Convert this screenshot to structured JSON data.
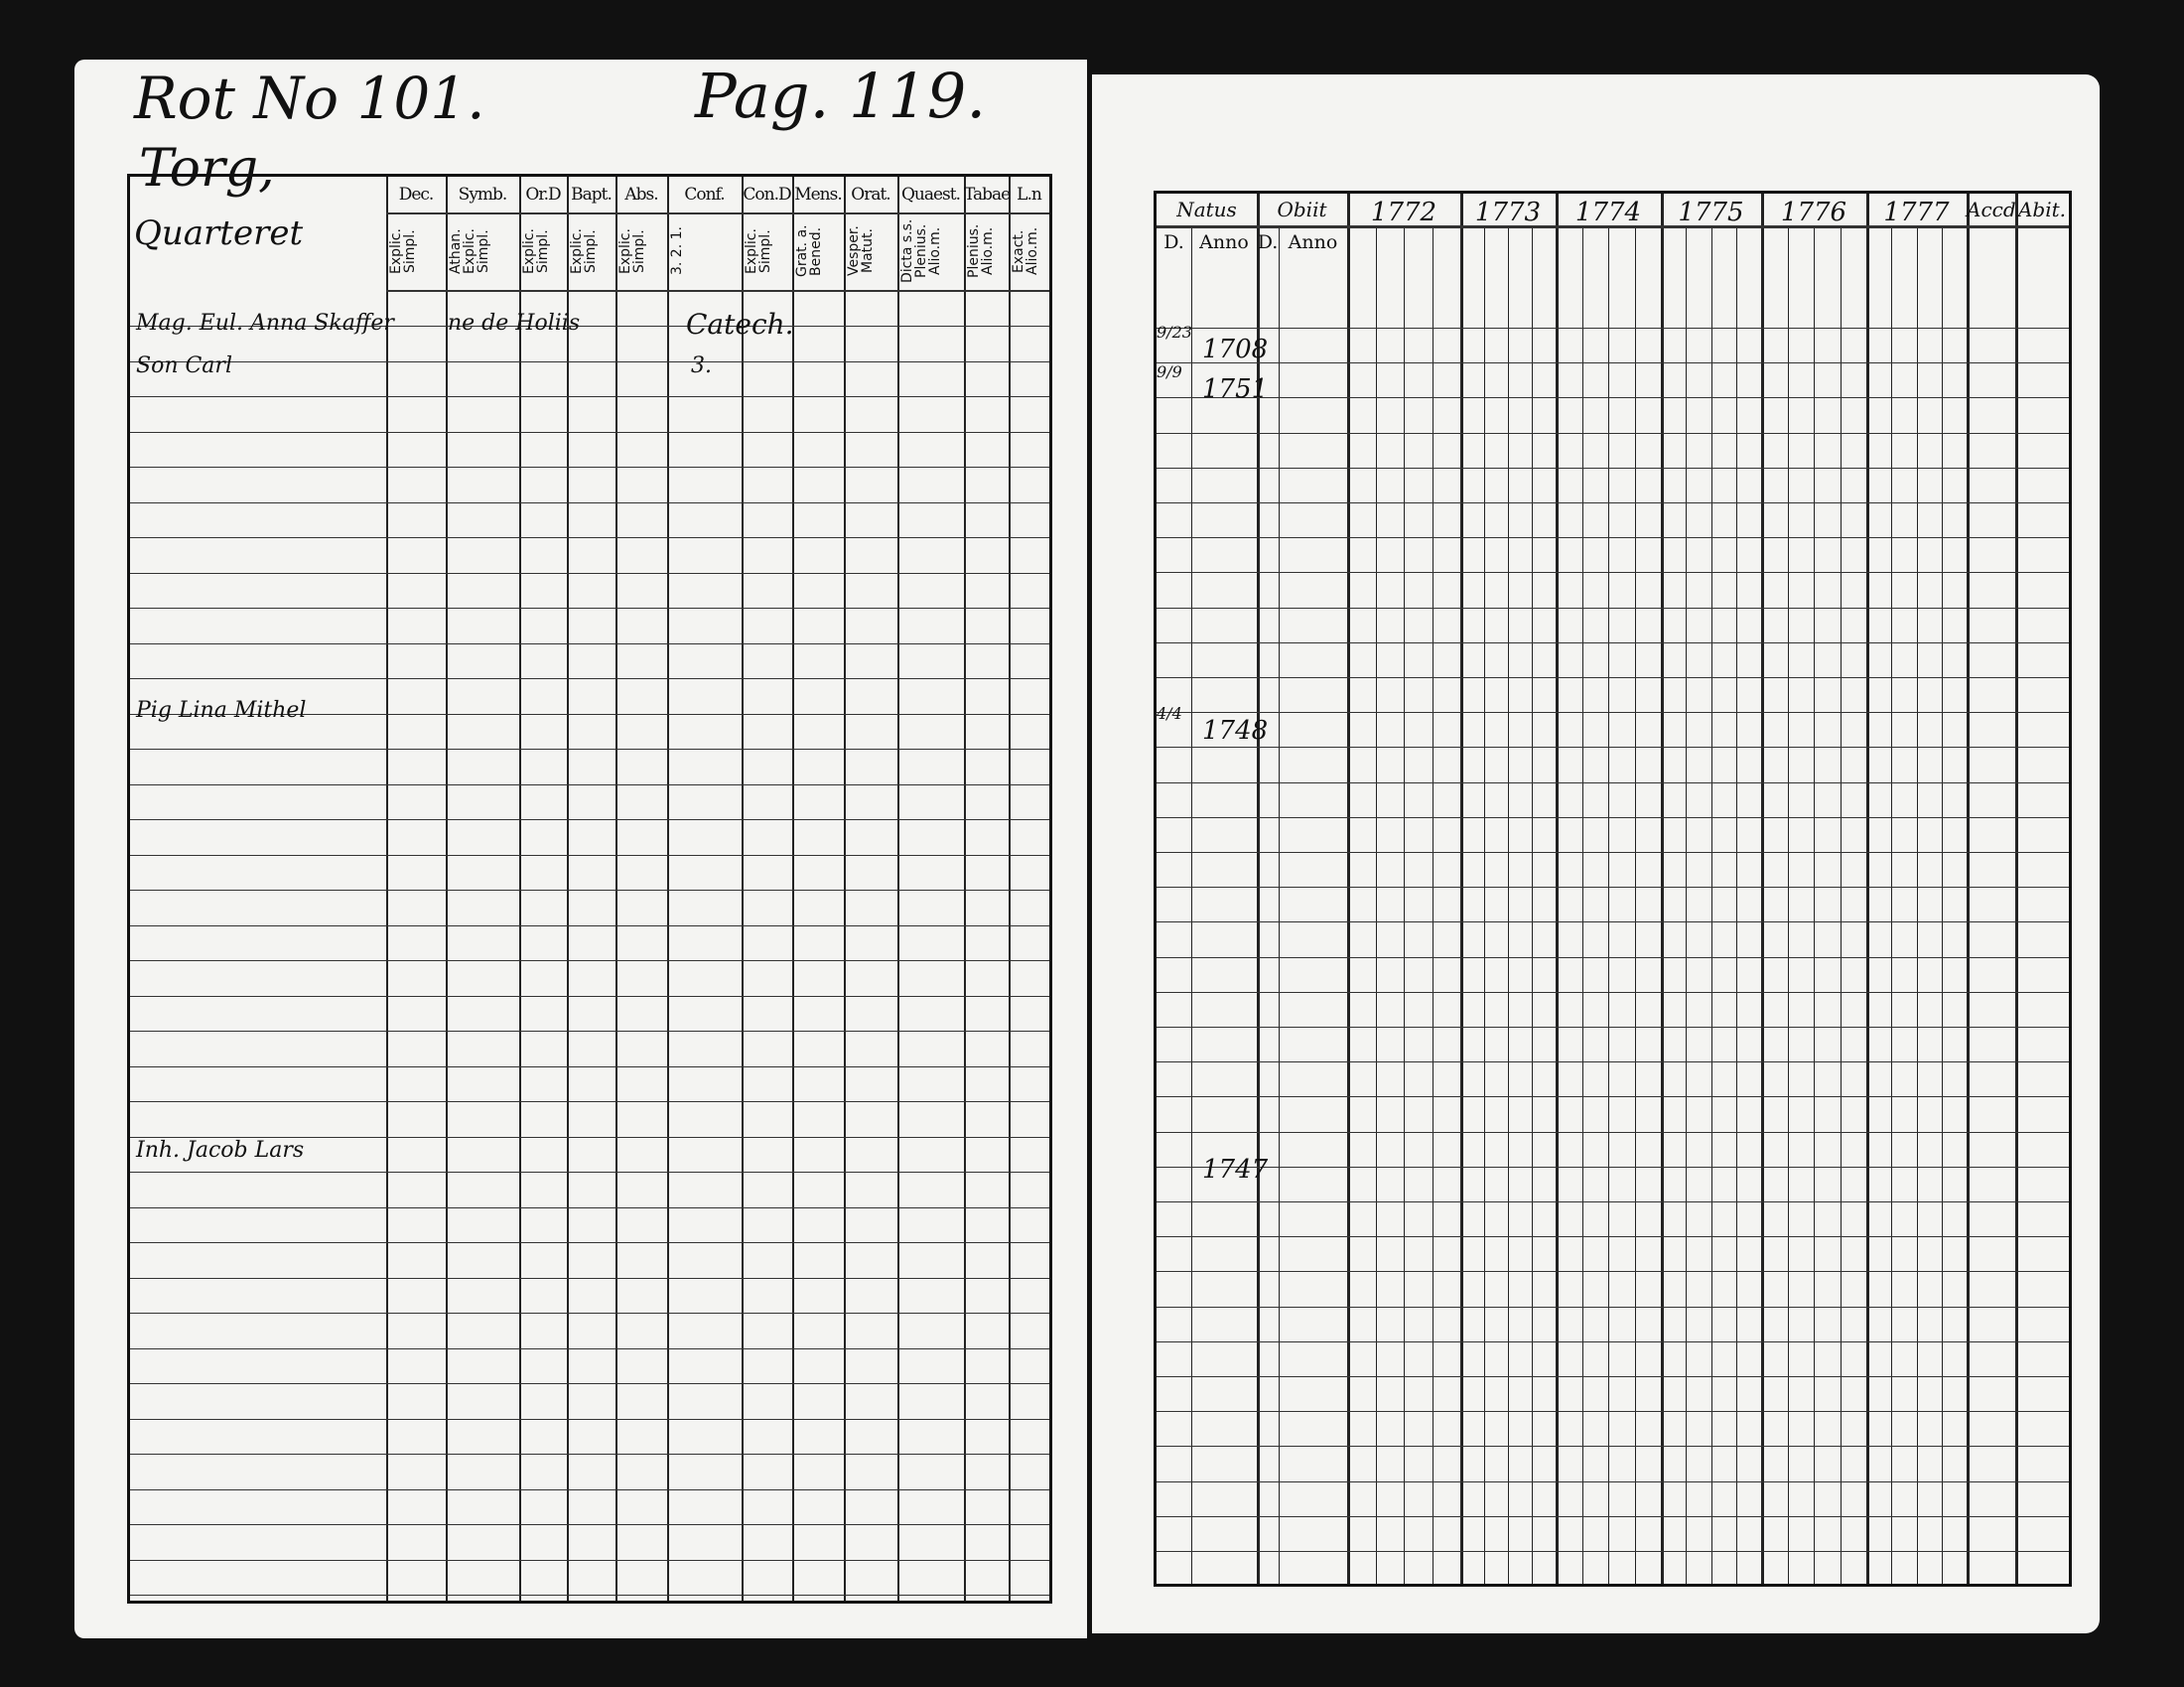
{
  "left_page": {
    "heading_left": "Rot No 101.",
    "heading_right": "Pag. 119.",
    "place": "Torg,",
    "place_sub": "Quarteret",
    "columns": [
      {
        "head": "Dec.",
        "sub": "Explic. Simpl."
      },
      {
        "head": "Symb.",
        "sub": "Athan. Explic. Simpl."
      },
      {
        "head": "Or.D",
        "sub": "Explic. Simpl."
      },
      {
        "head": "Bapt.",
        "sub": "Explic. Simpl."
      },
      {
        "head": "Abs.",
        "sub": "Explic. Simpl."
      },
      {
        "head": "Conf.",
        "sub": "3. 2. 1."
      },
      {
        "head": "Con.D",
        "sub": "Explic. Simpl."
      },
      {
        "head": "Mens.",
        "sub": "Grat. a. Bened."
      },
      {
        "head": "Orat.",
        "sub": "Vesper. Matut."
      },
      {
        "head": "Quaest.",
        "sub": "Dicta s.s. Plenius. Alio.m."
      },
      {
        "head": "Tabae",
        "sub": "Plenius. Alio.m."
      },
      {
        "head": "L.n",
        "sub": "Exact. Alio.m."
      }
    ],
    "entries": [
      {
        "name": "Mag. Eul. Anna Skaffer",
        "note": "ne de Holiis",
        "conf": "Catech."
      },
      {
        "name": "Son Carl",
        "conf": "3."
      },
      {
        "name": "Pig Lina Mithel"
      },
      {
        "name": "Inh. Jacob Lars"
      }
    ]
  },
  "right_page": {
    "columns": [
      {
        "head": "Natus",
        "sub": [
          "D.",
          "Anno"
        ]
      },
      {
        "head": "Obiit",
        "sub": [
          "D.",
          "Anno"
        ]
      },
      {
        "head": "1772"
      },
      {
        "head": "1773"
      },
      {
        "head": "1774"
      },
      {
        "head": "1775"
      },
      {
        "head": "1776"
      },
      {
        "head": "1777"
      },
      {
        "head": "Accd"
      },
      {
        "head": "Abit."
      }
    ],
    "entries": [
      {
        "day": "9/23",
        "year": "1708"
      },
      {
        "day": "9/9",
        "year": "1751"
      },
      {
        "day": "4/4",
        "year": "1748"
      },
      {
        "day": "",
        "year": "1747"
      }
    ]
  }
}
